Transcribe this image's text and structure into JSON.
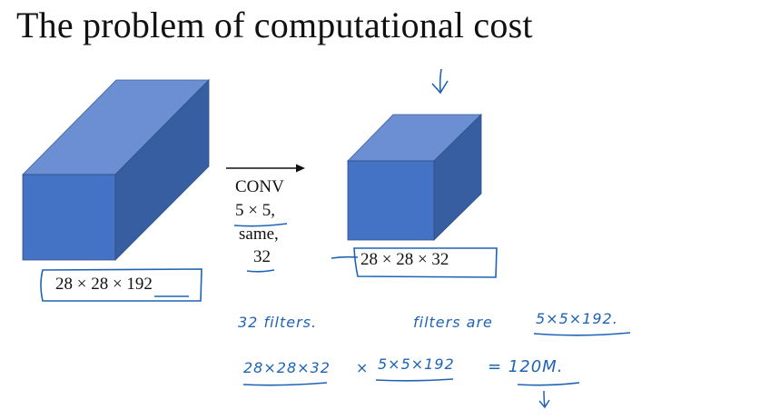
{
  "title": "The problem of computational cost",
  "input_volume": {
    "dims": "28 × 28 × 192"
  },
  "conv_layer": {
    "name": "CONV",
    "filter_size": "5 × 5,",
    "padding": "same,",
    "num_filters": "32"
  },
  "output_volume": {
    "dims": "28 × 28 × 32"
  },
  "annotations": {
    "filters_count": "32 filters.",
    "filters_are_label": "filters are",
    "filter_shape": "5×5×192.",
    "output_count": "28×28×32",
    "times_symbol": "×",
    "per_output_cost": "5×5×192",
    "equals_result": "= 120M."
  },
  "colors": {
    "cube_front": "#4472c4",
    "cube_top": "#6b8fd2",
    "cube_side": "#365ea0",
    "ink": "#1f63b5"
  }
}
